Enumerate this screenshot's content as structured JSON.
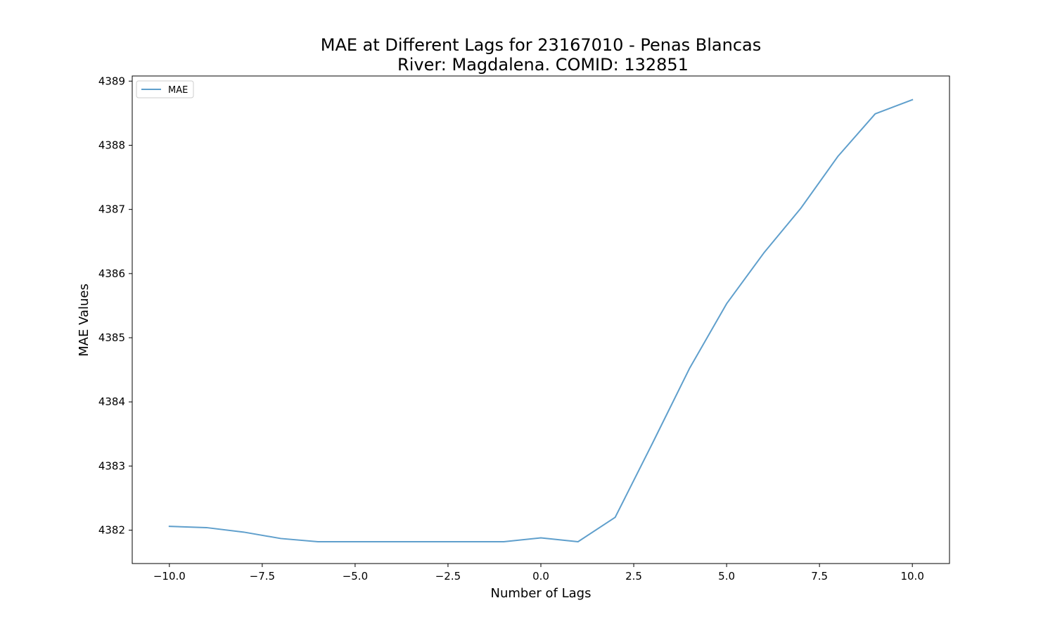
{
  "chart_data": {
    "type": "line",
    "title": "MAE at Different Lags for 23167010 - Penas Blancas",
    "subtitle": "River: Magdalena. COMID: 132851",
    "xlabel": "Number of Lags",
    "ylabel": "MAE Values",
    "xlim": [
      -11,
      11
    ],
    "ylim": [
      4381.48,
      4389.08
    ],
    "xticks": [
      -10.0,
      -7.5,
      -5.0,
      -2.5,
      0.0,
      2.5,
      5.0,
      7.5,
      10.0
    ],
    "xtick_labels": [
      "−10.0",
      "−7.5",
      "−5.0",
      "−2.5",
      "0.0",
      "2.5",
      "5.0",
      "7.5",
      "10.0"
    ],
    "yticks": [
      4382,
      4383,
      4384,
      4385,
      4386,
      4387,
      4388,
      4389
    ],
    "ytick_labels": [
      "4382",
      "4383",
      "4384",
      "4385",
      "4386",
      "4387",
      "4388",
      "4389"
    ],
    "grid": false,
    "legend_position": "top-left",
    "series": [
      {
        "name": "MAE",
        "color": "#5f9fcc",
        "x": [
          -10,
          -9,
          -8,
          -7,
          -6,
          -5,
          -4,
          -3,
          -2,
          -1,
          0,
          1,
          2,
          3,
          4,
          5,
          6,
          7,
          8,
          9,
          10
        ],
        "y": [
          4382.06,
          4382.04,
          4381.97,
          4381.87,
          4381.82,
          4381.82,
          4381.82,
          4381.82,
          4381.82,
          4381.82,
          4381.88,
          4381.82,
          4382.2,
          4383.35,
          4384.52,
          4385.53,
          4386.32,
          4387.02,
          4387.83,
          4388.49,
          4388.71
        ]
      }
    ]
  }
}
